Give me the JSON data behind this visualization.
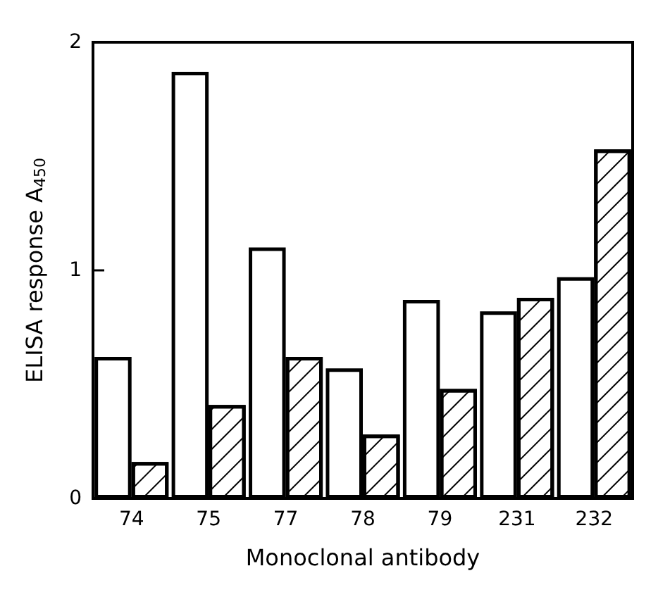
{
  "chart_data": {
    "type": "bar",
    "xlabel": "Monoclonal antibody",
    "ylabel": "ELISA response A$_{450}$",
    "categories": [
      "74",
      "75",
      "77",
      "78",
      "79",
      "231",
      "232"
    ],
    "series": [
      {
        "color": "#ffffff",
        "values": [
          0.62,
          1.87,
          1.1,
          0.57,
          0.87,
          0.82,
          0.97
        ]
      },
      {
        "color": "#ffffff",
        "values": [
          0.16,
          0.41,
          0.62,
          0.28,
          0.48,
          0.88,
          1.53
        ]
      }
    ],
    "ylim": [
      0,
      2
    ],
    "yticks": [
      0,
      1,
      2
    ],
    "grid": false
  }
}
